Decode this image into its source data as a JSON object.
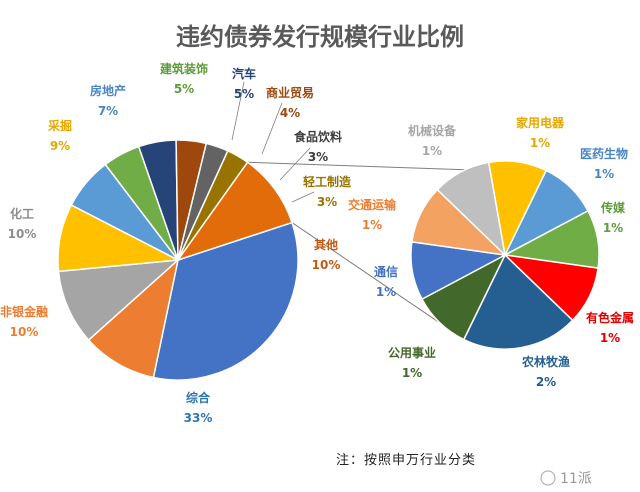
{
  "chart_data": {
    "type": "bar-of-pie",
    "title": "违约债券发行规模行业比例",
    "note": "注：按照申万行业分类",
    "main": [
      {
        "name": "综合",
        "value": 33,
        "label": "33%",
        "color": "#4472C4",
        "label_color": "#2E75B6"
      },
      {
        "name": "非银金融",
        "value": 10,
        "label": "10%",
        "color": "#ED7D31",
        "label_color": "#ED7D31"
      },
      {
        "name": "化工",
        "value": 10,
        "label": "10%",
        "color": "#A5A5A5",
        "label_color": "#8C8C8C"
      },
      {
        "name": "采掘",
        "value": 9,
        "label": "9%",
        "color": "#FFC000",
        "label_color": "#E6A800"
      },
      {
        "name": "房地产",
        "value": 7,
        "label": "7%",
        "color": "#5B9BD5",
        "label_color": "#4A86C4"
      },
      {
        "name": "建筑装饰",
        "value": 5,
        "label": "5%",
        "color": "#70AD47",
        "label_color": "#5E9C3A"
      },
      {
        "name": "汽车",
        "value": 5,
        "label": "5%",
        "color": "#264478",
        "label_color": "#264478"
      },
      {
        "name": "商业贸易",
        "value": 4,
        "label": "4%",
        "color": "#9E480E",
        "label_color": "#9E480E"
      },
      {
        "name": "食品饮料",
        "value": 3,
        "label": "3%",
        "color": "#636363",
        "label_color": "#404040"
      },
      {
        "name": "轻工制造",
        "value": 3,
        "label": "3%",
        "color": "#997300",
        "label_color": "#997300"
      },
      {
        "name": "其他",
        "value": 10,
        "label": "10%",
        "color": "#E36C0A",
        "label_color": "#C55A11"
      }
    ],
    "secondary": [
      {
        "name": "家用电器",
        "value": 1,
        "label": "1%",
        "color": "#FFC000",
        "label_color": "#E6A800"
      },
      {
        "name": "医药生物",
        "value": 1,
        "label": "1%",
        "color": "#5B9BD5",
        "label_color": "#4A86C4"
      },
      {
        "name": "传媒",
        "value": 1,
        "label": "1%",
        "color": "#70AD47",
        "label_color": "#5E9C3A"
      },
      {
        "name": "有色金属",
        "value": 1,
        "label": "1%",
        "color": "#FF0000",
        "label_color": "#E00000"
      },
      {
        "name": "农林牧渔",
        "value": 2,
        "label": "2%",
        "color": "#255E91",
        "label_color": "#255E91"
      },
      {
        "name": "公用事业",
        "value": 1,
        "label": "1%",
        "color": "#43682B",
        "label_color": "#43682B"
      },
      {
        "name": "通信",
        "value": 1,
        "label": "1%",
        "color": "#4472C4",
        "label_color": "#4472C4"
      },
      {
        "name": "交通运输",
        "value": 1,
        "label": "1%",
        "color": "#F4A261",
        "label_color": "#ED7D31"
      },
      {
        "name": "机械设备",
        "value": 1,
        "label": "1%",
        "color": "#BFBFBF",
        "label_color": "#A6A6A6"
      }
    ]
  },
  "watermark": "11派"
}
